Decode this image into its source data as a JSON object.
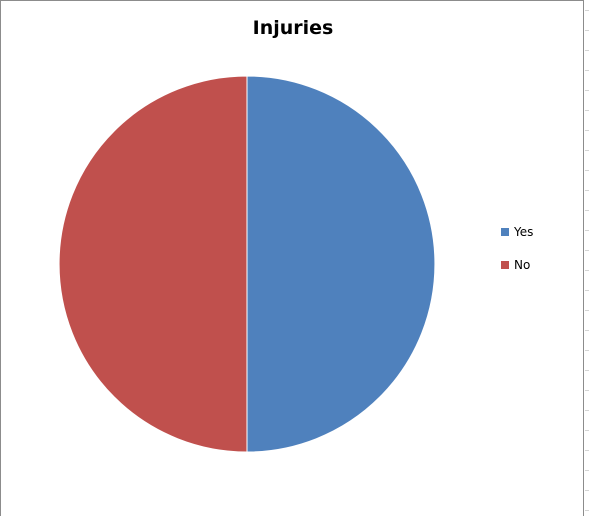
{
  "chart_data": {
    "type": "pie",
    "title": "Injuries",
    "categories": [
      "Yes",
      "No"
    ],
    "values": [
      50,
      50
    ],
    "colors": [
      "#4f81bd",
      "#c0504d"
    ],
    "legend_position": "right"
  }
}
